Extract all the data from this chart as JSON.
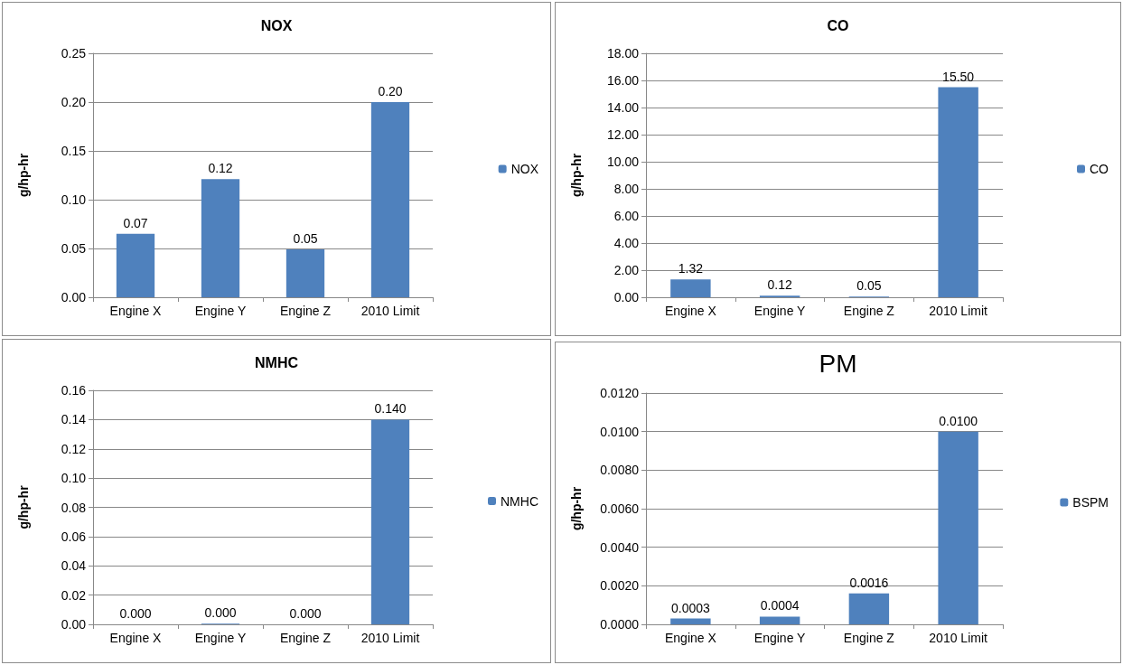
{
  "chart_data": [
    {
      "type": "bar",
      "title": "NOX",
      "ylabel": "g/hp-hr",
      "categories": [
        "Engine X",
        "Engine Y",
        "Engine Z",
        "2010 Limit"
      ],
      "series": [
        {
          "name": "NOX",
          "color": "#4f81bd",
          "values": [
            0.065,
            0.121,
            0.049,
            0.2
          ],
          "value_labels": [
            "0.07",
            "0.12",
            "0.05",
            "0.20"
          ]
        }
      ],
      "ylim": [
        0,
        0.25
      ],
      "yticks": [
        {
          "value": 0,
          "label": "0.00"
        },
        {
          "value": 0.05,
          "label": "0.05"
        },
        {
          "value": 0.1,
          "label": "0.10"
        },
        {
          "value": 0.15,
          "label": "0.15"
        },
        {
          "value": 0.2,
          "label": "0.20"
        },
        {
          "value": 0.25,
          "label": "0.25"
        }
      ],
      "grid": "y",
      "legend": "right"
    },
    {
      "type": "bar",
      "title": "CO",
      "ylabel": "g/hp-hr",
      "categories": [
        "Engine X",
        "Engine Y",
        "Engine Z",
        "2010 Limit"
      ],
      "series": [
        {
          "name": "CO",
          "color": "#4f81bd",
          "values": [
            1.32,
            0.12,
            0.05,
            15.5
          ],
          "value_labels": [
            "1.32",
            "0.12",
            "0.05",
            "15.50"
          ]
        }
      ],
      "ylim": [
        0,
        18
      ],
      "yticks": [
        {
          "value": 0,
          "label": "0.00"
        },
        {
          "value": 2,
          "label": "2.00"
        },
        {
          "value": 4,
          "label": "4.00"
        },
        {
          "value": 6,
          "label": "6.00"
        },
        {
          "value": 8,
          "label": "8.00"
        },
        {
          "value": 10,
          "label": "10.00"
        },
        {
          "value": 12,
          "label": "12.00"
        },
        {
          "value": 14,
          "label": "14.00"
        },
        {
          "value": 16,
          "label": "16.00"
        },
        {
          "value": 18,
          "label": "18.00"
        }
      ],
      "grid": "y",
      "legend": "right"
    },
    {
      "type": "bar",
      "title": "NMHC",
      "ylabel": "g/hp-hr",
      "categories": [
        "Engine X",
        "Engine Y",
        "Engine Z",
        "2010 Limit"
      ],
      "series": [
        {
          "name": "NMHC",
          "color": "#4f81bd",
          "values": [
            0,
            0.0004,
            0,
            0.14
          ],
          "value_labels": [
            "0.000",
            "0.000",
            "0.000",
            "0.140"
          ]
        }
      ],
      "ylim": [
        0,
        0.16
      ],
      "yticks": [
        {
          "value": 0,
          "label": "0.00"
        },
        {
          "value": 0.02,
          "label": "0.02"
        },
        {
          "value": 0.04,
          "label": "0.04"
        },
        {
          "value": 0.06,
          "label": "0.06"
        },
        {
          "value": 0.08,
          "label": "0.08"
        },
        {
          "value": 0.1,
          "label": "0.10"
        },
        {
          "value": 0.12,
          "label": "0.12"
        },
        {
          "value": 0.14,
          "label": "0.14"
        },
        {
          "value": 0.16,
          "label": "0.16"
        }
      ],
      "grid": "y",
      "legend": "right"
    },
    {
      "type": "bar",
      "title": "PM",
      "ylabel": "g/hp-hr",
      "categories": [
        "Engine X",
        "Engine Y",
        "Engine Z",
        "2010 Limit"
      ],
      "series": [
        {
          "name": "BSPM",
          "color": "#4f81bd",
          "values": [
            0.0003,
            0.0004,
            0.0016,
            0.01
          ],
          "value_labels": [
            "0.0003",
            "0.0004",
            "0.0016",
            "0.0100"
          ]
        }
      ],
      "ylim": [
        0,
        0.012
      ],
      "yticks": [
        {
          "value": 0,
          "label": "0.0000"
        },
        {
          "value": 0.002,
          "label": "0.0020"
        },
        {
          "value": 0.004,
          "label": "0.0040"
        },
        {
          "value": 0.006,
          "label": "0.0060"
        },
        {
          "value": 0.008,
          "label": "0.0080"
        },
        {
          "value": 0.01,
          "label": "0.0100"
        },
        {
          "value": 0.012,
          "label": "0.0120"
        }
      ],
      "grid": "y",
      "legend": "right"
    }
  ]
}
